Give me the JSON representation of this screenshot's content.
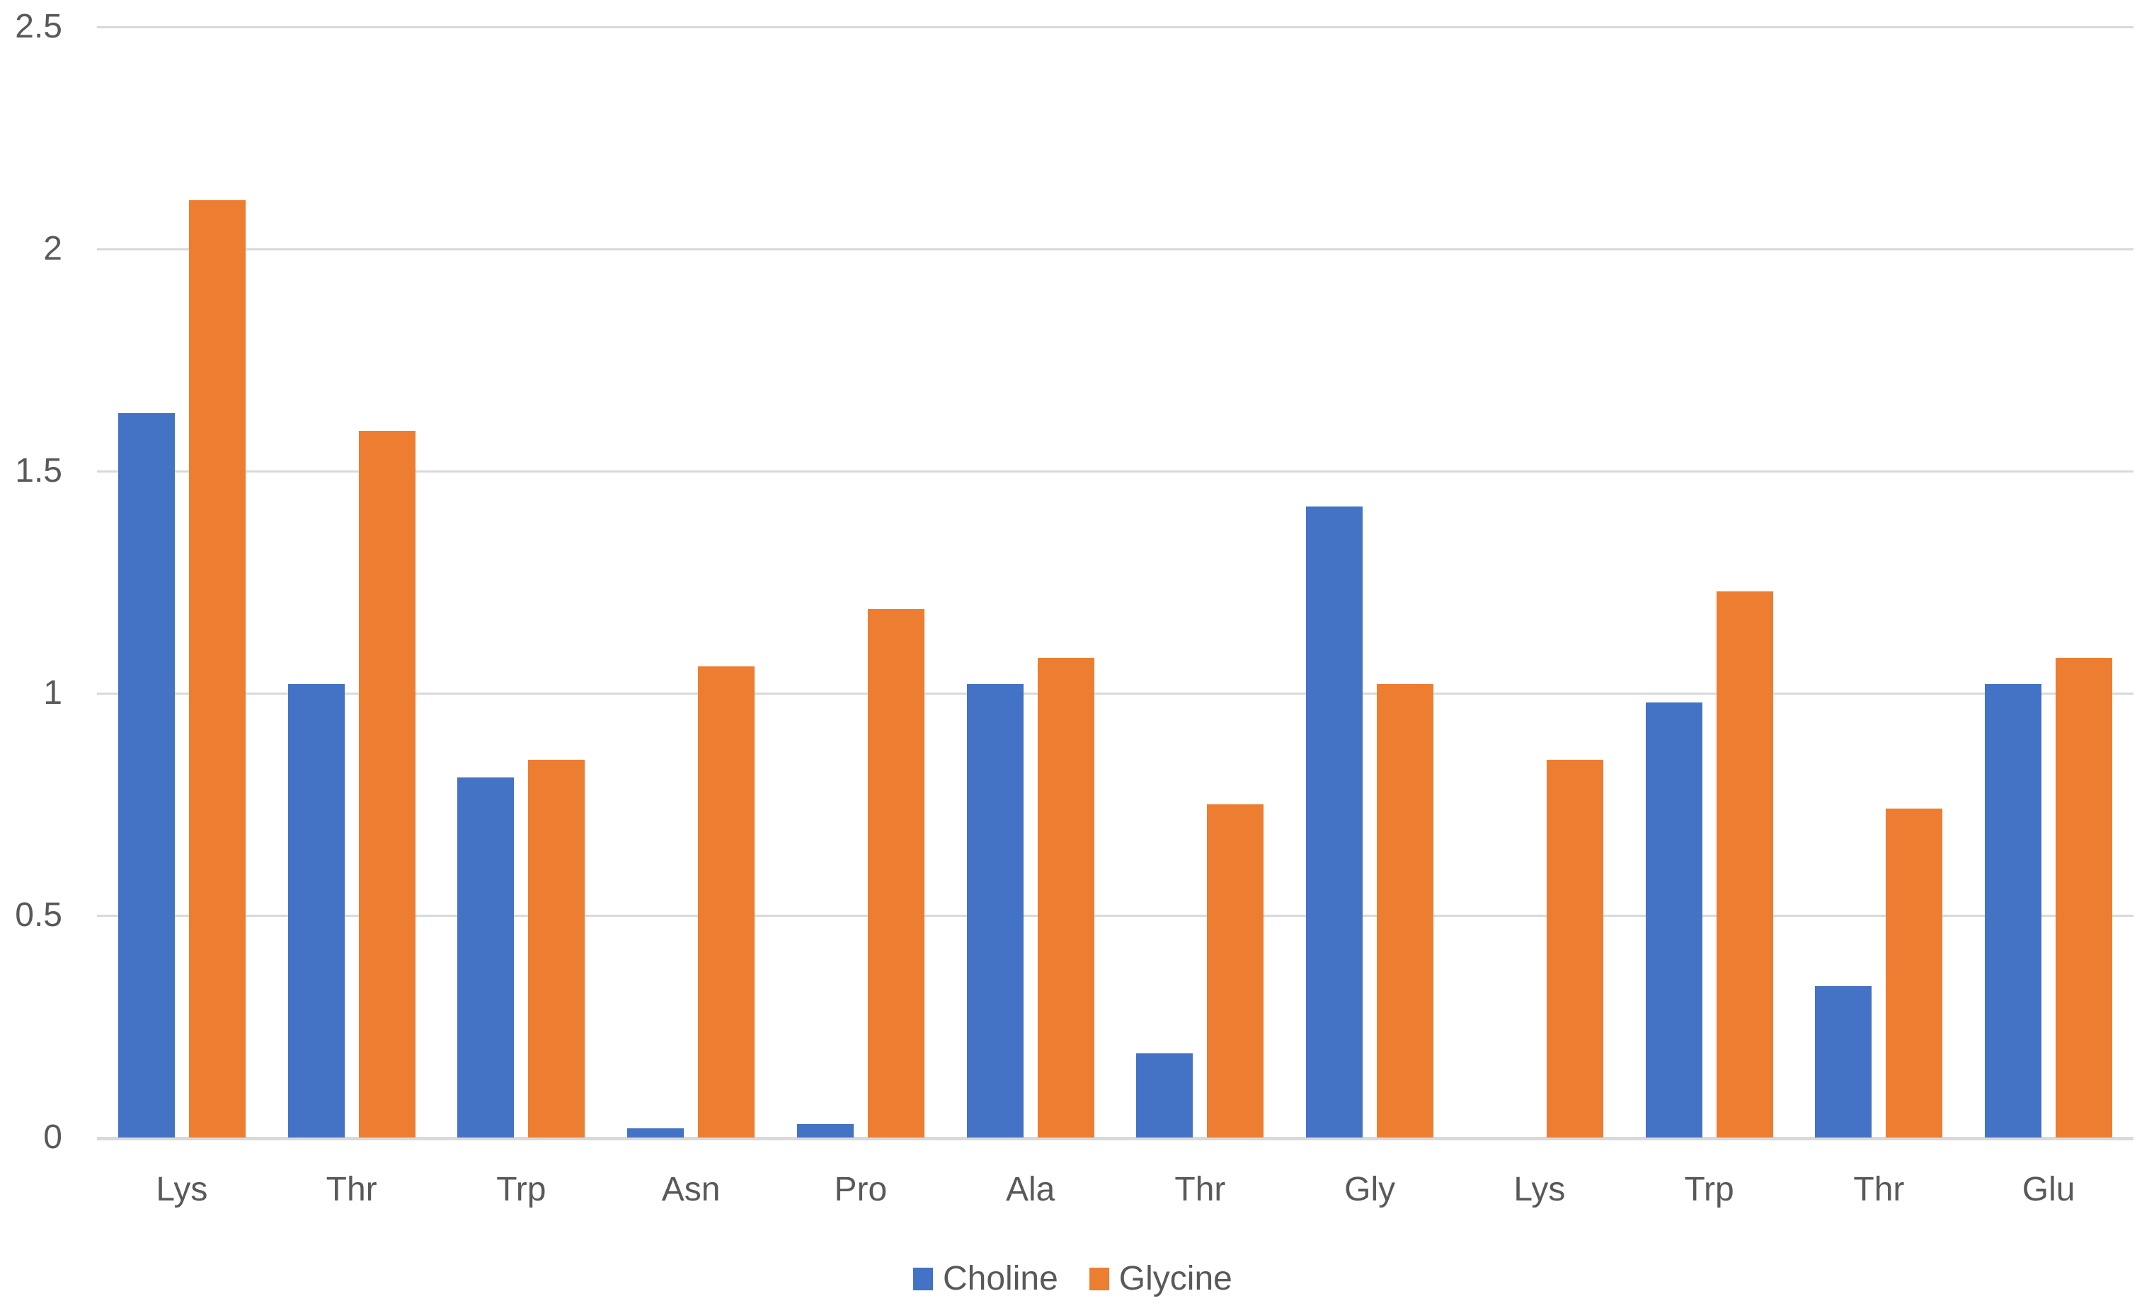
{
  "chart_data": {
    "type": "bar",
    "title": "",
    "xlabel": "",
    "ylabel": "",
    "categories": [
      "Lys",
      "Thr",
      "Trp",
      "Asn",
      "Pro",
      "Ala",
      "Thr",
      "Gly",
      "Lys",
      "Trp",
      "Thr",
      "Glu"
    ],
    "series": [
      {
        "name": "Choline",
        "color": "#4472c4",
        "values": [
          1.63,
          1.02,
          0.81,
          0.02,
          0.03,
          1.02,
          0.19,
          1.42,
          0,
          0.98,
          0.34,
          1.02
        ]
      },
      {
        "name": "Glycine",
        "color": "#ed7d31",
        "values": [
          2.11,
          1.59,
          0.85,
          1.06,
          1.19,
          1.08,
          0.75,
          1.02,
          0.85,
          1.23,
          0.74,
          1.08
        ]
      }
    ],
    "ylim": [
      0,
      2.5
    ],
    "yticks": [
      0,
      0.5,
      1,
      1.5,
      2,
      2.5
    ],
    "ytick_labels": [
      "0",
      "0.5",
      "1",
      "1.5",
      "2",
      "2.5"
    ],
    "grid": true,
    "legend_position": "bottom"
  },
  "colors": {
    "choline": "#4472c4",
    "glycine": "#ed7d31",
    "gridline": "#d9d9d9",
    "axis_text": "#595959",
    "background": "#ffffff"
  },
  "legend": {
    "items": [
      {
        "label": "Choline",
        "color": "#4472c4"
      },
      {
        "label": "Glycine",
        "color": "#ed7d31"
      }
    ]
  }
}
